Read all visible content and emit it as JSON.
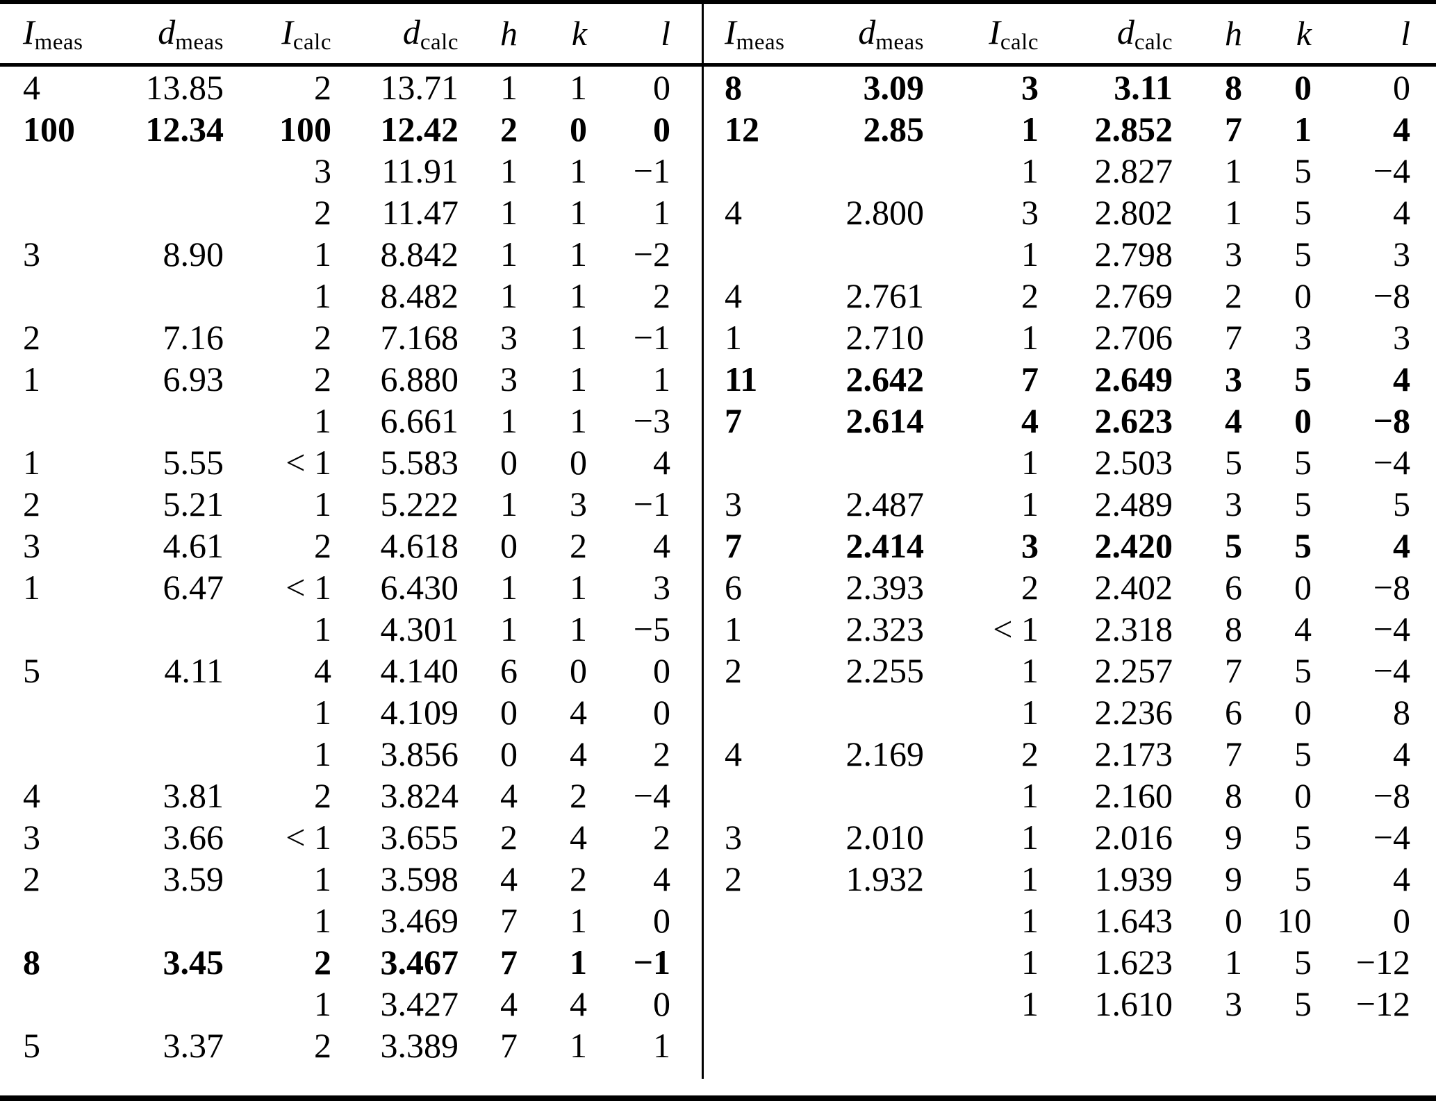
{
  "table": {
    "headers": [
      {
        "base": "I",
        "sub": "meas"
      },
      {
        "base": "d",
        "sub": "meas"
      },
      {
        "base": "I",
        "sub": "calc"
      },
      {
        "base": "d",
        "sub": "calc"
      },
      {
        "base": "h",
        "sub": ""
      },
      {
        "base": "k",
        "sub": ""
      },
      {
        "base": "l",
        "sub": ""
      }
    ],
    "rows": [
      {
        "l": [
          "4",
          "13.85",
          "2",
          "13.71",
          "1",
          "1",
          "0"
        ],
        "lb": 0,
        "r": [
          "8",
          "3.09",
          "3",
          "3.11",
          "8",
          "0",
          "0"
        ],
        "rb": [
          1,
          1,
          1,
          1,
          1,
          1,
          0
        ]
      },
      {
        "l": [
          "100",
          "12.34",
          "100",
          "12.42",
          "2",
          "0",
          "0"
        ],
        "lb": 1,
        "r": [
          "12",
          "2.85",
          "1",
          "2.852",
          "7",
          "1",
          "4"
        ],
        "rb": 1
      },
      {
        "l": [
          "",
          "",
          "3",
          "11.91",
          "1",
          "1",
          "−1"
        ],
        "lb": 0,
        "r": [
          "",
          "",
          "1",
          "2.827",
          "1",
          "5",
          "−4"
        ],
        "rb": 0
      },
      {
        "l": [
          "",
          "",
          "2",
          "11.47",
          "1",
          "1",
          "1"
        ],
        "lb": 0,
        "r": [
          "4",
          "2.800",
          "3",
          "2.802",
          "1",
          "5",
          "4"
        ],
        "rb": 0
      },
      {
        "l": [
          "3",
          "8.90",
          "1",
          "8.842",
          "1",
          "1",
          "−2"
        ],
        "lb": 0,
        "r": [
          "",
          "",
          "1",
          "2.798",
          "3",
          "5",
          "3"
        ],
        "rb": 0
      },
      {
        "l": [
          "",
          "",
          "1",
          "8.482",
          "1",
          "1",
          "2"
        ],
        "lb": 0,
        "r": [
          "4",
          "2.761",
          "2",
          "2.769",
          "2",
          "0",
          "−8"
        ],
        "rb": 0
      },
      {
        "l": [
          "2",
          "7.16",
          "2",
          "7.168",
          "3",
          "1",
          "−1"
        ],
        "lb": 0,
        "r": [
          "1",
          "2.710",
          "1",
          "2.706",
          "7",
          "3",
          "3"
        ],
        "rb": 0
      },
      {
        "l": [
          "1",
          "6.93",
          "2",
          "6.880",
          "3",
          "1",
          "1"
        ],
        "lb": 0,
        "r": [
          "11",
          "2.642",
          "7",
          "2.649",
          "3",
          "5",
          "4"
        ],
        "rb": 1
      },
      {
        "l": [
          "",
          "",
          "1",
          "6.661",
          "1",
          "1",
          "−3"
        ],
        "lb": 0,
        "r": [
          "7",
          "2.614",
          "4",
          "2.623",
          "4",
          "0",
          "−8"
        ],
        "rb": 1
      },
      {
        "l": [
          "1",
          "5.55",
          "< 1",
          "5.583",
          "0",
          "0",
          "4"
        ],
        "lb": 0,
        "r": [
          "",
          "",
          "1",
          "2.503",
          "5",
          "5",
          "−4"
        ],
        "rb": 0
      },
      {
        "l": [
          "2",
          "5.21",
          "1",
          "5.222",
          "1",
          "3",
          "−1"
        ],
        "lb": 0,
        "r": [
          "3",
          "2.487",
          "1",
          "2.489",
          "3",
          "5",
          "5"
        ],
        "rb": 0
      },
      {
        "l": [
          "3",
          "4.61",
          "2",
          "4.618",
          "0",
          "2",
          "4"
        ],
        "lb": 0,
        "r": [
          "7",
          "2.414",
          "3",
          "2.420",
          "5",
          "5",
          "4"
        ],
        "rb": 1
      },
      {
        "l": [
          "1",
          "6.47",
          "< 1",
          "6.430",
          "1",
          "1",
          "3"
        ],
        "lb": 0,
        "r": [
          "6",
          "2.393",
          "2",
          "2.402",
          "6",
          "0",
          "−8"
        ],
        "rb": 0
      },
      {
        "l": [
          "",
          "",
          "1",
          "4.301",
          "1",
          "1",
          "−5"
        ],
        "lb": 0,
        "r": [
          "1",
          "2.323",
          "< 1",
          "2.318",
          "8",
          "4",
          "−4"
        ],
        "rb": 0
      },
      {
        "l": [
          "5",
          "4.11",
          "4",
          "4.140",
          "6",
          "0",
          "0"
        ],
        "lb": 0,
        "r": [
          "2",
          "2.255",
          "1",
          "2.257",
          "7",
          "5",
          "−4"
        ],
        "rb": 0
      },
      {
        "l": [
          "",
          "",
          "1",
          "4.109",
          "0",
          "4",
          "0"
        ],
        "lb": 0,
        "r": [
          "",
          "",
          "1",
          "2.236",
          "6",
          "0",
          "8"
        ],
        "rb": 0
      },
      {
        "l": [
          "",
          "",
          "1",
          "3.856",
          "0",
          "4",
          "2"
        ],
        "lb": 0,
        "r": [
          "4",
          "2.169",
          "2",
          "2.173",
          "7",
          "5",
          "4"
        ],
        "rb": 0
      },
      {
        "l": [
          "4",
          "3.81",
          "2",
          "3.824",
          "4",
          "2",
          "−4"
        ],
        "lb": 0,
        "r": [
          "",
          "",
          "1",
          "2.160",
          "8",
          "0",
          "−8"
        ],
        "rb": 0
      },
      {
        "l": [
          "3",
          "3.66",
          "< 1",
          "3.655",
          "2",
          "4",
          "2"
        ],
        "lb": 0,
        "r": [
          "3",
          "2.010",
          "1",
          "2.016",
          "9",
          "5",
          "−4"
        ],
        "rb": 0
      },
      {
        "l": [
          "2",
          "3.59",
          "1",
          "3.598",
          "4",
          "2",
          "4"
        ],
        "lb": 0,
        "r": [
          "2",
          "1.932",
          "1",
          "1.939",
          "9",
          "5",
          "4"
        ],
        "rb": 0
      },
      {
        "l": [
          "",
          "",
          "1",
          "3.469",
          "7",
          "1",
          "0"
        ],
        "lb": 0,
        "r": [
          "",
          "",
          "1",
          "1.643",
          "0",
          "10",
          "0"
        ],
        "rb": 0
      },
      {
        "l": [
          "8",
          "3.45",
          "2",
          "3.467",
          "7",
          "1",
          "−1"
        ],
        "lb": 1,
        "r": [
          "",
          "",
          "1",
          "1.623",
          "1",
          "5",
          "−12"
        ],
        "rb": 0
      },
      {
        "l": [
          "",
          "",
          "1",
          "3.427",
          "4",
          "4",
          "0"
        ],
        "lb": 0,
        "r": [
          "",
          "",
          "1",
          "1.610",
          "3",
          "5",
          "−12"
        ],
        "rb": 0
      },
      {
        "l": [
          "5",
          "3.37",
          "2",
          "3.389",
          "7",
          "1",
          "1"
        ],
        "lb": 0,
        "r": [
          "",
          "",
          "",
          "",
          "",
          "",
          ""
        ],
        "rb": 0
      }
    ]
  }
}
